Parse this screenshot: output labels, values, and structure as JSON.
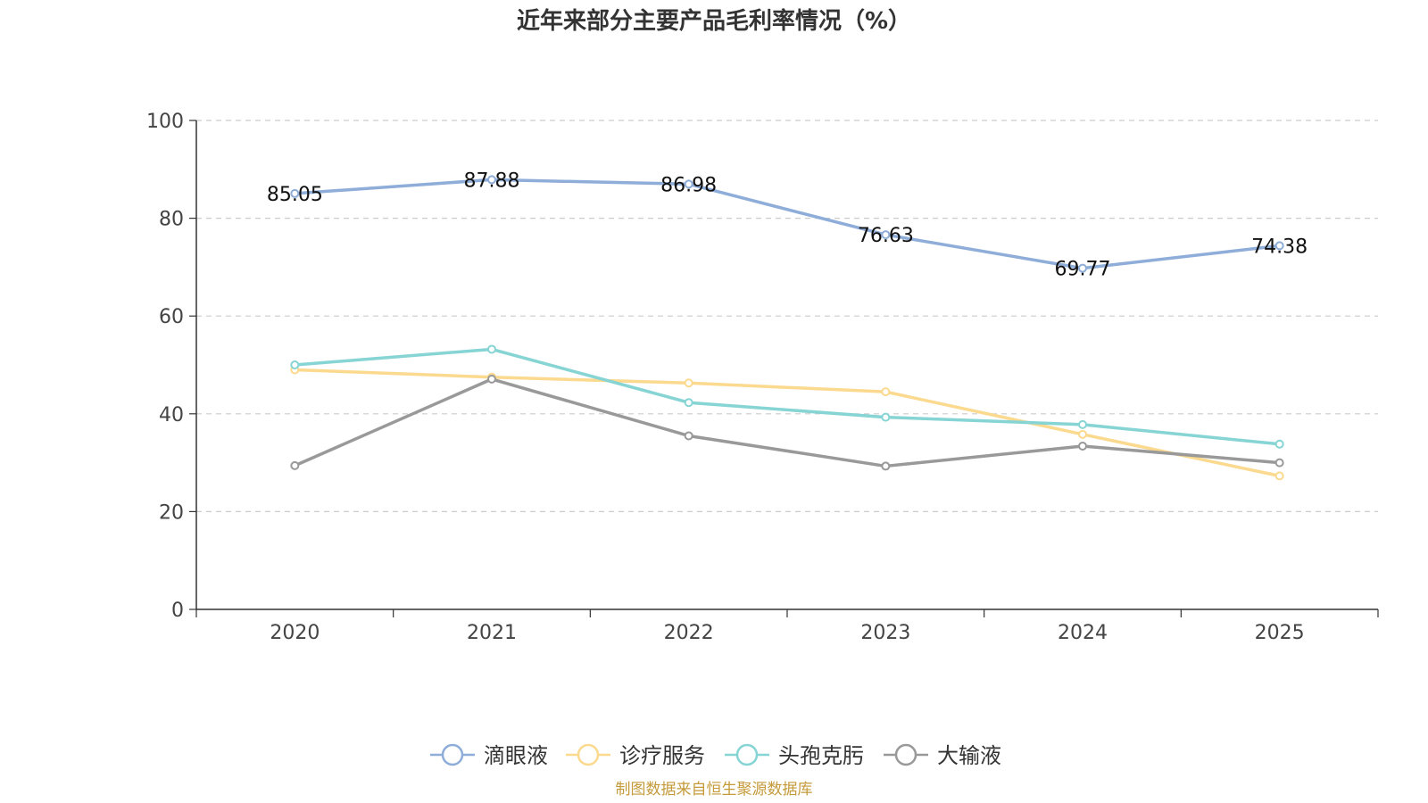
{
  "chart_data": {
    "type": "line",
    "title": "近年来部分主要产品毛利率情况（%）",
    "categories": [
      "2020",
      "2021",
      "2022",
      "2023",
      "2024",
      "2025"
    ],
    "ylim": [
      0,
      100
    ],
    "yticks": [
      0,
      20,
      40,
      60,
      80,
      100
    ],
    "grid": true,
    "legend_position": "bottom",
    "series": [
      {
        "name": "滴眼液",
        "color": "#8eadd9",
        "values": [
          85.05,
          87.88,
          86.98,
          76.63,
          69.77,
          74.38
        ],
        "show_labels": true
      },
      {
        "name": "诊疗服务",
        "color": "#fbd98f",
        "values": [
          49.0,
          47.5,
          46.3,
          44.5,
          35.8,
          27.3
        ],
        "show_labels": false
      },
      {
        "name": "头孢克肟",
        "color": "#86d4d4",
        "values": [
          50.0,
          53.2,
          42.3,
          39.3,
          37.8,
          33.8
        ],
        "show_labels": false
      },
      {
        "name": "大输液",
        "color": "#999999",
        "values": [
          29.4,
          47.1,
          35.5,
          29.3,
          33.4,
          30.0
        ],
        "show_labels": false
      }
    ],
    "source_text": "制图数据来自恒生聚源数据库",
    "source_color": "#c59a3a"
  }
}
